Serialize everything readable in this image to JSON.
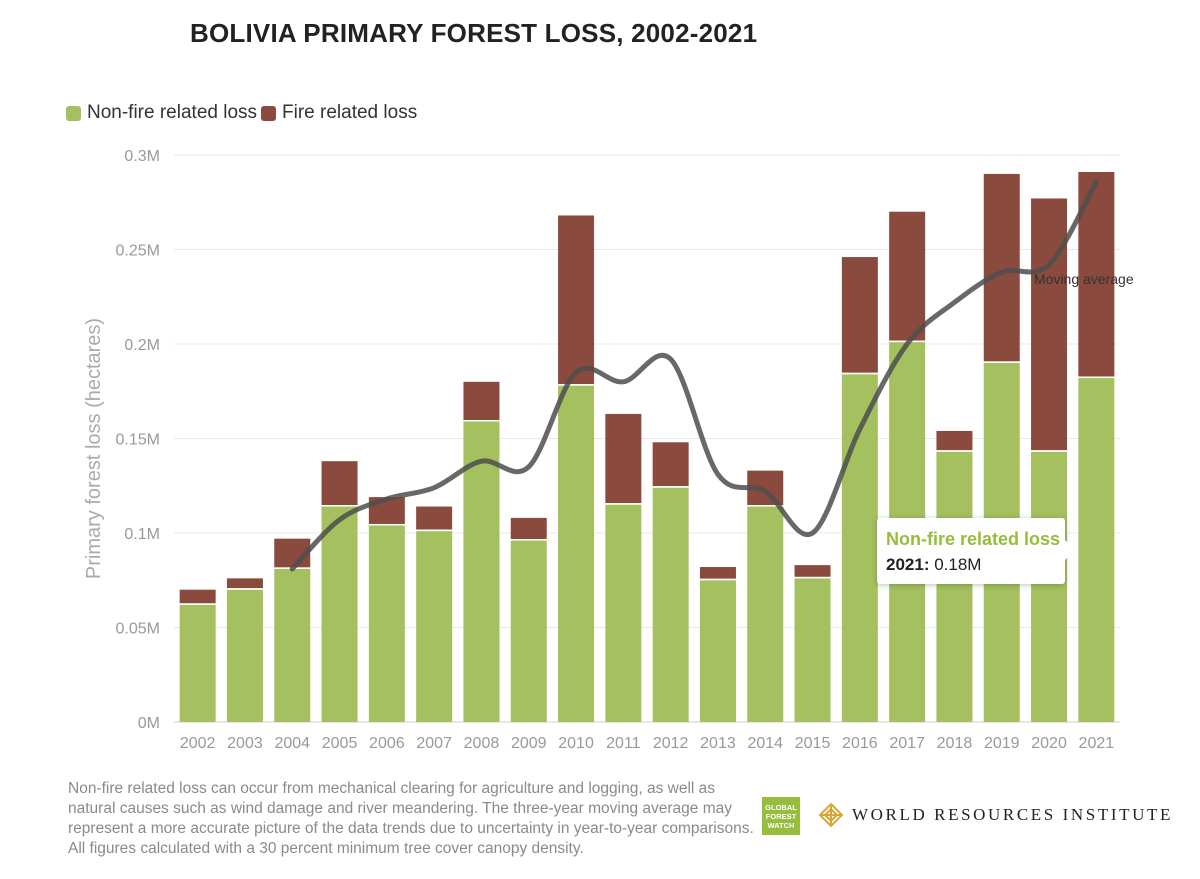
{
  "title": "BOLIVIA PRIMARY FOREST LOSS, 2002-2021",
  "legend": {
    "nonfire": {
      "label": "Non-fire related loss",
      "color": "#a4c05f"
    },
    "fire": {
      "label": "Fire related loss",
      "color": "#8b4a3e"
    }
  },
  "tooltip": {
    "title": "Non-fire related loss",
    "year": "2021:",
    "value": "0.18M"
  },
  "footnote": "Non-fire related loss can occur from mechanical clearing for agriculture and logging, as well as natural causes such as wind damage and river meandering. The three-year moving average may represent a more accurate picture of the data trends due to uncertainty in year-to-year comparisons. All figures calculated with a 30 percent minimum tree cover canopy density.",
  "logos": {
    "gfw": "GLOBAL FOREST WATCH",
    "wri": "WORLD RESOURCES INSTITUTE"
  },
  "chart_data": {
    "type": "bar",
    "stacked": true,
    "title": "BOLIVIA PRIMARY FOREST LOSS, 2002-2021",
    "xlabel": "",
    "ylabel": "Primary forest loss (hectares)",
    "ylim": [
      0,
      0.3
    ],
    "yunit": "M",
    "yticks": [
      "0M",
      "0.05M",
      "0.1M",
      "0.15M",
      "0.2M",
      "0.25M",
      "0.3M"
    ],
    "ytick_values": [
      0,
      0.05,
      0.1,
      0.15,
      0.2,
      0.25,
      0.3
    ],
    "grid": true,
    "legend_position": "top-left",
    "categories": [
      "2002",
      "2003",
      "2004",
      "2005",
      "2006",
      "2007",
      "2008",
      "2009",
      "2010",
      "2011",
      "2012",
      "2013",
      "2014",
      "2015",
      "2016",
      "2017",
      "2018",
      "2019",
      "2020",
      "2021"
    ],
    "series": [
      {
        "name": "Non-fire related loss",
        "color": "#a4c05f",
        "values": [
          0.062,
          0.07,
          0.081,
          0.114,
          0.104,
          0.101,
          0.159,
          0.096,
          0.178,
          0.115,
          0.124,
          0.075,
          0.114,
          0.076,
          0.184,
          0.201,
          0.143,
          0.19,
          0.143,
          0.182
        ]
      },
      {
        "name": "Fire related loss",
        "color": "#8b4a3e",
        "values": [
          0.008,
          0.006,
          0.016,
          0.024,
          0.015,
          0.013,
          0.021,
          0.012,
          0.09,
          0.048,
          0.024,
          0.007,
          0.019,
          0.007,
          0.062,
          0.069,
          0.011,
          0.1,
          0.134,
          0.109
        ]
      }
    ],
    "moving_average": {
      "name": "Moving average",
      "color": "#4d4d4d",
      "x": [
        "2004",
        "2005",
        "2006",
        "2007",
        "2008",
        "2009",
        "2010",
        "2011",
        "2012",
        "2013",
        "2014",
        "2015",
        "2016",
        "2017",
        "2018",
        "2019",
        "2020",
        "2021"
      ],
      "values": [
        0.081,
        0.107,
        0.118,
        0.124,
        0.138,
        0.135,
        0.185,
        0.18,
        0.192,
        0.131,
        0.122,
        0.1,
        0.155,
        0.2,
        0.222,
        0.238,
        0.242,
        0.286
      ]
    }
  }
}
